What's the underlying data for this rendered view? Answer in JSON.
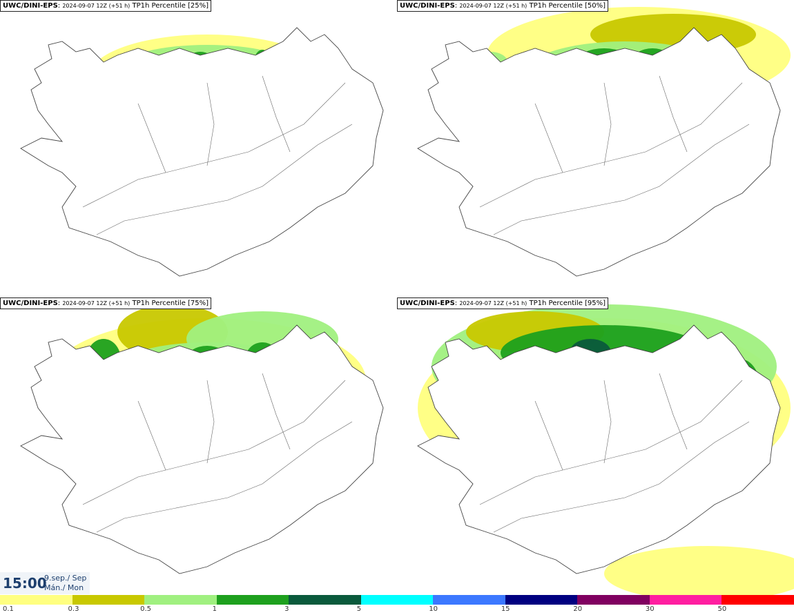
{
  "panels": [
    {
      "model": "UWC/DINI-EPS",
      "run": "2024-09-07 12Z (+51 h)",
      "product": "TP1h Percentile [25%]"
    },
    {
      "model": "UWC/DINI-EPS",
      "run": "2024-09-07 12Z (+51 h)",
      "product": "TP1h Percentile [50%]"
    },
    {
      "model": "UWC/DINI-EPS",
      "run": "2024-09-07 12Z (+51 h)",
      "product": "TP1h Percentile [75%]"
    },
    {
      "model": "UWC/DINI-EPS",
      "run": "2024-09-07 12Z (+51 h)",
      "product": "TP1h Percentile [95%]"
    }
  ],
  "valid_time": {
    "time": "15:00",
    "date_line1": "9.sep./ Sep",
    "date_line2": "Mán./ Mon"
  },
  "legend": {
    "ticks": [
      "0.1",
      "0.3",
      "0.5",
      "1",
      "3",
      "5",
      "10",
      "15",
      "20",
      "30",
      "50"
    ],
    "colors": [
      "#ffff80",
      "#c8c800",
      "#a0f080",
      "#1ea01e",
      "#0a5a3c",
      "#00ffff",
      "#3c78ff",
      "#000080",
      "#800060",
      "#ff1ea0",
      "#ff0000"
    ]
  },
  "map_colors": {
    "light": "#ffff80",
    "olive": "#c8c800",
    "lightgreen": "#a0f080",
    "green": "#1ea01e",
    "darkgreen": "#0a5a3c"
  }
}
